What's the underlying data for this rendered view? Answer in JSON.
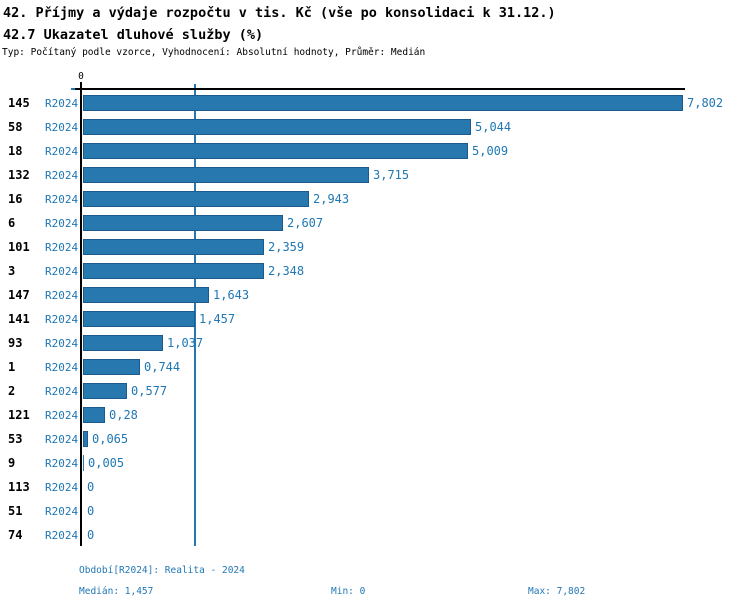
{
  "header": {
    "title_line1": "42. Příjmy a výdaje rozpočtu v tis. Kč (vše po konsolidaci k 31.12.)",
    "title_line2": "42.7 Ukazatel dluhové služby (%)",
    "subtitle": "Typ: Počítaný podle vzorce, Vyhodnocení: Absolutní hodnoty, Průměr: Medián"
  },
  "chart_data": {
    "type": "bar",
    "orientation": "horizontal",
    "title": "42.7 Ukazatel dluhové služby (%)",
    "xlabel": "",
    "ylabel": "",
    "xlim": [
      0,
      7.802
    ],
    "x_tick_labels": [
      "0"
    ],
    "grid": "single vertical median line",
    "median_value": 1.457,
    "series_name": "R2024",
    "categories": [
      "145",
      "58",
      "18",
      "132",
      "16",
      "6",
      "101",
      "3",
      "147",
      "141",
      "93",
      "1",
      "2",
      "121",
      "53",
      "9",
      "113",
      "51",
      "74"
    ],
    "values": [
      7.802,
      5.044,
      5.009,
      3.715,
      2.943,
      2.607,
      2.359,
      2.348,
      1.643,
      1.457,
      1.037,
      0.744,
      0.577,
      0.28,
      0.065,
      0.005,
      0,
      0,
      0
    ],
    "value_labels": [
      "7,802",
      "5,044",
      "5,009",
      "3,715",
      "2,943",
      "2,607",
      "2,359",
      "2,348",
      "1,643",
      "1,457",
      "1,037",
      "0,744",
      "0,577",
      "0,28",
      "0,065",
      "0,005",
      "0",
      "0",
      "0"
    ],
    "colors": {
      "bar_fill": "#2878b0",
      "bar_border": "#1a5a8c",
      "blue_text": "#1f77b4",
      "median_line": "#2878b0",
      "axis": "#000000"
    }
  },
  "axis": {
    "zero_label": "0"
  },
  "footer": {
    "period": "Období[R2024]: Realita - 2024",
    "median": "Medián: 1,457",
    "min": "Min: 0",
    "max": "Max: 7,802"
  }
}
